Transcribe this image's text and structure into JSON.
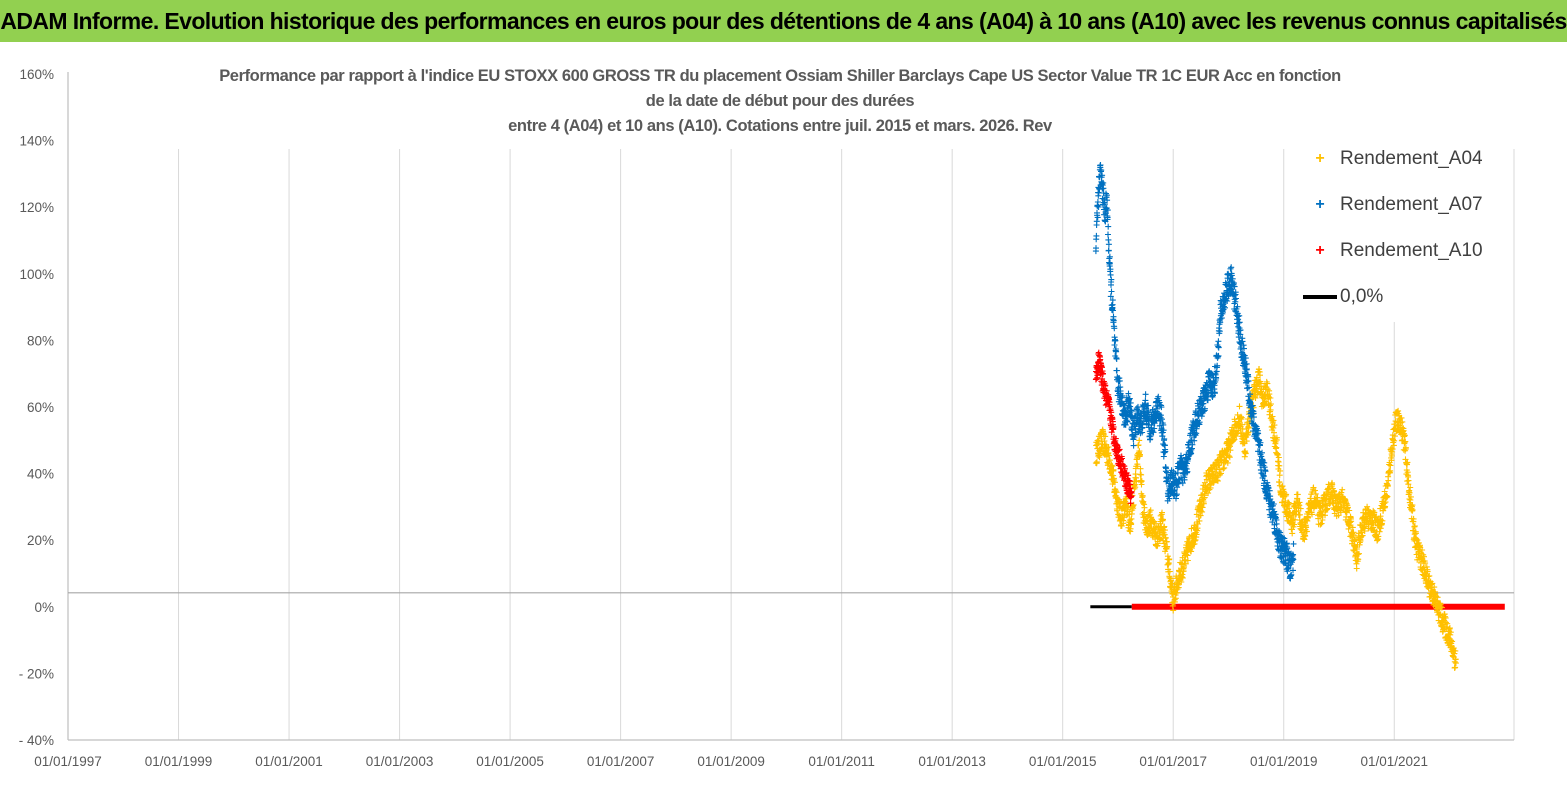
{
  "banner": {
    "title": "ADAM Informe. Evolution historique des performances en euros pour des détentions de 4 ans (A04) à 10 ans (A10) avec les revenus connus capitalisés"
  },
  "chart_data": {
    "type": "scatter",
    "title_lines": [
      "Performance par rapport à l'indice EU STOXX 600 GROSS TR  du placement Ossiam Shiller Barclays Cape US Sector Value TR 1C EUR Acc en fonction",
      "de la date de début pour des durées",
      "entre 4 (A04) et 10 ans (A10). Cotations entre juil. 2015 et mars. 2026. Rev"
    ],
    "x_axis": {
      "type": "date",
      "range": [
        "1997-01-01",
        "2023-03-01"
      ],
      "tick_labels": [
        "01/01/1997",
        "01/01/1999",
        "01/01/2001",
        "01/01/2003",
        "01/01/2005",
        "01/01/2007",
        "01/01/2009",
        "01/01/2011",
        "01/01/2013",
        "01/01/2015",
        "01/01/2017",
        "01/01/2019",
        "01/01/2021"
      ],
      "tick_values": [
        1997,
        1999,
        2001,
        2003,
        2005,
        2007,
        2009,
        2011,
        2013,
        2015,
        2017,
        2019,
        2021
      ],
      "gridlines": true
    },
    "y_axis": {
      "range": [
        -40,
        160
      ],
      "tick_values": [
        -40,
        -20,
        0,
        20,
        40,
        60,
        80,
        100,
        120,
        140,
        160
      ],
      "tick_labels": [
        "- 40%",
        "- 20%",
        "0%",
        "20%",
        "40%",
        "60%",
        "80%",
        "100%",
        "120%",
        "140%",
        "160%"
      ],
      "gridlines": false
    },
    "legend": {
      "placement": "top-right"
    },
    "series": [
      {
        "name": "Rendement_A04",
        "color": "#ffc000",
        "marker": "plus",
        "anchors": [
          [
            2015.6,
            46
          ],
          [
            2015.72,
            50
          ],
          [
            2015.85,
            44
          ],
          [
            2015.95,
            35
          ],
          [
            2016.05,
            27
          ],
          [
            2016.15,
            30
          ],
          [
            2016.22,
            25
          ],
          [
            2016.3,
            36
          ],
          [
            2016.38,
            48
          ],
          [
            2016.45,
            30
          ],
          [
            2016.52,
            24
          ],
          [
            2016.6,
            26
          ],
          [
            2016.7,
            21
          ],
          [
            2016.8,
            25
          ],
          [
            2016.88,
            17
          ],
          [
            2016.95,
            8
          ],
          [
            2017.0,
            2
          ],
          [
            2017.1,
            9
          ],
          [
            2017.2,
            13
          ],
          [
            2017.3,
            19
          ],
          [
            2017.4,
            23
          ],
          [
            2017.5,
            30
          ],
          [
            2017.6,
            37
          ],
          [
            2017.7,
            39
          ],
          [
            2017.8,
            41
          ],
          [
            2017.9,
            44
          ],
          [
            2018.0,
            47
          ],
          [
            2018.1,
            53
          ],
          [
            2018.2,
            57
          ],
          [
            2018.3,
            48
          ],
          [
            2018.38,
            58
          ],
          [
            2018.45,
            63
          ],
          [
            2018.55,
            69
          ],
          [
            2018.62,
            62
          ],
          [
            2018.7,
            65
          ],
          [
            2018.8,
            55
          ],
          [
            2018.88,
            47
          ],
          [
            2018.95,
            35
          ],
          [
            2019.05,
            30
          ],
          [
            2019.15,
            25
          ],
          [
            2019.25,
            32
          ],
          [
            2019.35,
            22
          ],
          [
            2019.45,
            28
          ],
          [
            2019.55,
            33
          ],
          [
            2019.65,
            27
          ],
          [
            2019.75,
            31
          ],
          [
            2019.85,
            35
          ],
          [
            2019.95,
            30
          ],
          [
            2020.05,
            32
          ],
          [
            2020.15,
            28
          ],
          [
            2020.25,
            21
          ],
          [
            2020.32,
            14
          ],
          [
            2020.4,
            24
          ],
          [
            2020.5,
            27
          ],
          [
            2020.6,
            26
          ],
          [
            2020.7,
            23
          ],
          [
            2020.8,
            30
          ],
          [
            2020.88,
            36
          ],
          [
            2020.95,
            47
          ],
          [
            2021.02,
            55
          ],
          [
            2021.1,
            56
          ],
          [
            2021.18,
            50
          ],
          [
            2021.25,
            38
          ],
          [
            2021.32,
            28
          ],
          [
            2021.4,
            18
          ],
          [
            2021.5,
            14
          ],
          [
            2021.6,
            8
          ],
          [
            2021.7,
            4
          ],
          [
            2021.78,
            0
          ],
          [
            2021.85,
            -3
          ],
          [
            2021.92,
            -6
          ],
          [
            2022.0,
            -9
          ],
          [
            2022.08,
            -14
          ],
          [
            2022.12,
            -17
          ]
        ]
      },
      {
        "name": "Rendement_A07",
        "color": "#0070c0",
        "marker": "plus",
        "anchors": [
          [
            2015.6,
            108
          ],
          [
            2015.63,
            120
          ],
          [
            2015.68,
            130
          ],
          [
            2015.72,
            126
          ],
          [
            2015.76,
            118
          ],
          [
            2015.8,
            122
          ],
          [
            2015.85,
            102
          ],
          [
            2015.9,
            90
          ],
          [
            2015.93,
            82
          ],
          [
            2015.97,
            72
          ],
          [
            2016.0,
            66
          ],
          [
            2016.06,
            63
          ],
          [
            2016.12,
            57
          ],
          [
            2016.2,
            61
          ],
          [
            2016.28,
            52
          ],
          [
            2016.35,
            57
          ],
          [
            2016.42,
            55
          ],
          [
            2016.5,
            60
          ],
          [
            2016.58,
            54
          ],
          [
            2016.65,
            56
          ],
          [
            2016.72,
            61
          ],
          [
            2016.8,
            55
          ],
          [
            2016.85,
            45
          ],
          [
            2016.9,
            35
          ],
          [
            2016.97,
            38
          ],
          [
            2017.05,
            36
          ],
          [
            2017.12,
            42
          ],
          [
            2017.2,
            40
          ],
          [
            2017.28,
            46
          ],
          [
            2017.35,
            52
          ],
          [
            2017.42,
            56
          ],
          [
            2017.5,
            60
          ],
          [
            2017.58,
            63
          ],
          [
            2017.66,
            68
          ],
          [
            2017.74,
            66
          ],
          [
            2017.8,
            75
          ],
          [
            2017.86,
            88
          ],
          [
            2017.92,
            92
          ],
          [
            2017.98,
            96
          ],
          [
            2018.05,
            98
          ],
          [
            2018.12,
            92
          ],
          [
            2018.18,
            85
          ],
          [
            2018.24,
            78
          ],
          [
            2018.3,
            72
          ],
          [
            2018.35,
            68
          ],
          [
            2018.4,
            60
          ],
          [
            2018.46,
            55
          ],
          [
            2018.52,
            50
          ],
          [
            2018.58,
            45
          ],
          [
            2018.64,
            40
          ],
          [
            2018.7,
            35
          ],
          [
            2018.76,
            30
          ],
          [
            2018.82,
            28
          ],
          [
            2018.88,
            22
          ],
          [
            2018.94,
            18
          ],
          [
            2019.0,
            17
          ],
          [
            2019.06,
            15
          ],
          [
            2019.12,
            11
          ],
          [
            2019.18,
            16
          ]
        ]
      },
      {
        "name": "Rendement_A10",
        "color": "#ff0000",
        "marker": "plus",
        "anchors": [
          [
            2015.6,
            70
          ],
          [
            2015.66,
            74
          ],
          [
            2015.72,
            68
          ],
          [
            2015.78,
            63
          ],
          [
            2015.84,
            60
          ],
          [
            2015.9,
            54
          ],
          [
            2015.96,
            48
          ],
          [
            2016.02,
            45
          ],
          [
            2016.08,
            42
          ],
          [
            2016.14,
            38
          ],
          [
            2016.2,
            36
          ],
          [
            2016.25,
            32
          ]
        ],
        "zero_segment": {
          "from": 2016.25,
          "to": 2023.0,
          "value": 0
        }
      },
      {
        "name": "0,0%",
        "color": "#000000",
        "marker": "line",
        "segment": {
          "from": 2015.5,
          "to": 2016.25,
          "value": 0
        }
      }
    ]
  }
}
